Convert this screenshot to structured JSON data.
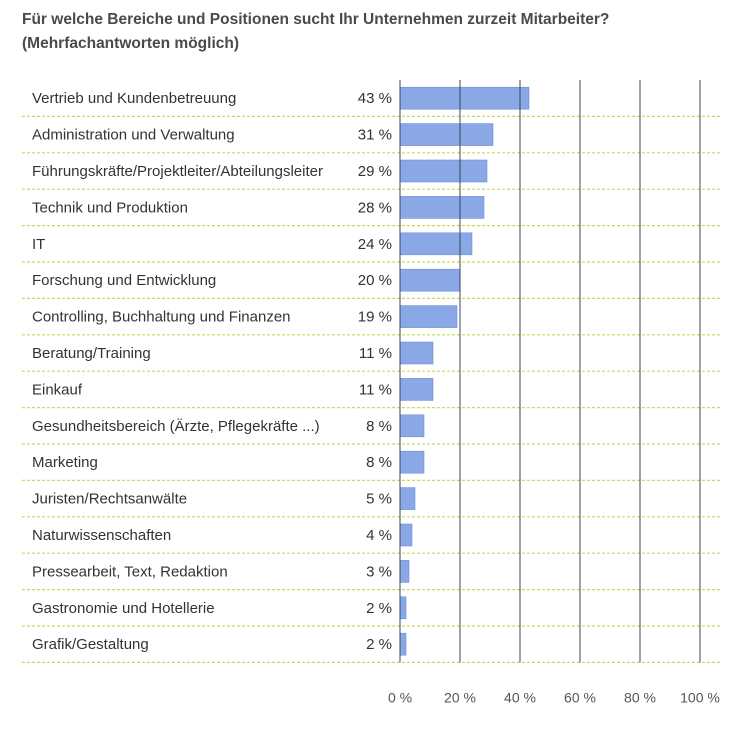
{
  "title": {
    "line1": "Für welche Bereiche und Positionen sucht Ihr Unternehmen zurzeit Mitarbeiter?",
    "line2": "(Mehrfachantworten möglich)"
  },
  "colors": {
    "bar": "#8aa8e6",
    "bar_edge": "#6d8fd6",
    "separator": "#c9d95a",
    "gridline": "#3b4658"
  },
  "chart_data": {
    "type": "bar",
    "orientation": "horizontal",
    "categories": [
      "Vertrieb und Kundenbetreuung",
      "Administration und Verwaltung",
      "Führungskräfte/Projektleiter/Abteilungsleiter",
      "Technik und Produktion",
      "IT",
      "Forschung und Entwicklung",
      "Controlling, Buchhaltung und Finanzen",
      "Beratung/Training",
      "Einkauf",
      "Gesundheitsbereich (Ärzte, Pflegekräfte ...)",
      "Marketing",
      "Juristen/Rechtsanwälte",
      "Naturwissenschaften",
      "Pressearbeit, Text, Redaktion",
      "Gastronomie und Hotellerie",
      "Grafik/Gestaltung"
    ],
    "values": [
      43,
      31,
      29,
      28,
      24,
      20,
      19,
      11,
      11,
      8,
      8,
      5,
      4,
      3,
      2,
      2
    ],
    "value_labels": [
      "43 %",
      "31 %",
      "29 %",
      "28 %",
      "24 %",
      "20 %",
      "19 %",
      "11 %",
      "11 %",
      "8 %",
      "8 %",
      "5 %",
      "4 %",
      "3 %",
      "2 %",
      "2 %"
    ],
    "xlim": [
      0,
      100
    ],
    "x_ticks": [
      0,
      20,
      40,
      60,
      80,
      100
    ],
    "x_tick_labels": [
      "0 %",
      "20 %",
      "40 %",
      "60 %",
      "80 %",
      "100 %"
    ],
    "grid": true
  }
}
